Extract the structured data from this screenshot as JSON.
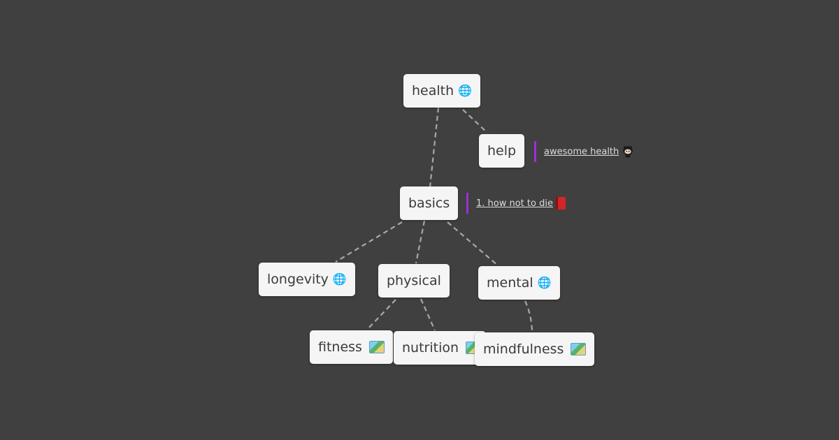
{
  "nodes": {
    "health": {
      "label": "health",
      "icon": "globe-icon"
    },
    "help": {
      "label": "help"
    },
    "basics": {
      "label": "basics"
    },
    "longevity": {
      "label": "longevity",
      "icon": "globe-icon"
    },
    "physical": {
      "label": "physical"
    },
    "mental": {
      "label": "mental",
      "icon": "globe-icon"
    },
    "fitness": {
      "label": "fitness",
      "icon": "map-icon"
    },
    "nutrition": {
      "label": "nutrition",
      "icon": "map-icon"
    },
    "mindfulness": {
      "label": "mindfulness",
      "icon": "map-icon"
    }
  },
  "notes": {
    "help": {
      "link_text": "awesome health",
      "icon": "github-octocat-icon"
    },
    "basics": {
      "link_text": "1. how not to die",
      "icon": "book-icon"
    }
  },
  "edges": [
    [
      "health",
      "basics"
    ],
    [
      "health",
      "help"
    ],
    [
      "basics",
      "longevity"
    ],
    [
      "basics",
      "physical"
    ],
    [
      "basics",
      "mental"
    ],
    [
      "physical",
      "fitness"
    ],
    [
      "physical",
      "nutrition"
    ],
    [
      "mental",
      "mindfulness"
    ]
  ],
  "colors": {
    "background": "#404040",
    "node_fill": "#f5f5f5",
    "edge": "#a8a8a8",
    "note_accent": "#9b30d8"
  }
}
